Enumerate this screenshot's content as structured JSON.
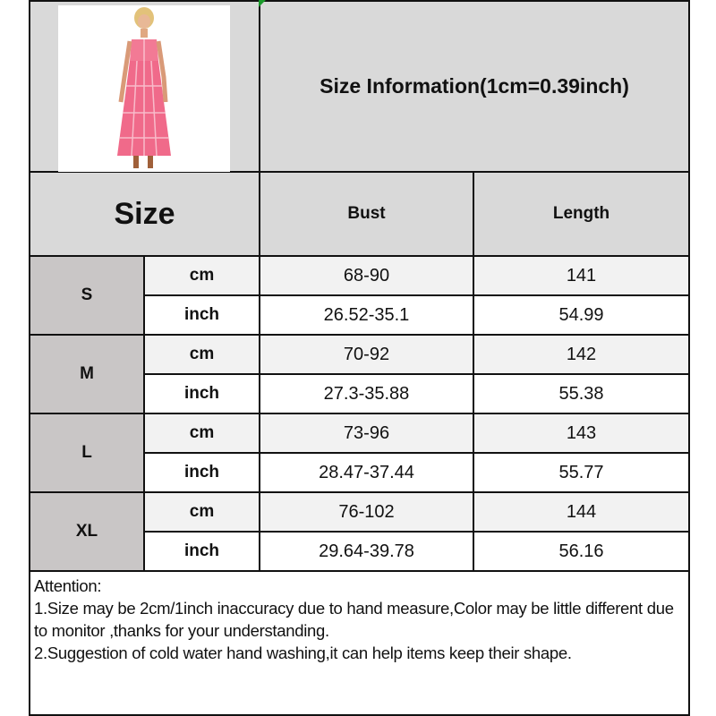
{
  "title": "Size Information(1cm=0.39inch)",
  "product_image": {
    "alt": "Pink plaid strapless maxi dress",
    "dress_color": "#f06a8a"
  },
  "header": {
    "size_label": "Size",
    "columns": [
      "Bust",
      "Length"
    ]
  },
  "sizes": [
    {
      "size": "S",
      "rows": [
        {
          "unit": "cm",
          "bust": "68-90",
          "length": "141"
        },
        {
          "unit": "inch",
          "bust": "26.52-35.1",
          "length": "54.99"
        }
      ]
    },
    {
      "size": "M",
      "rows": [
        {
          "unit": "cm",
          "bust": "70-92",
          "length": "142"
        },
        {
          "unit": "inch",
          "bust": "27.3-35.88",
          "length": "55.38"
        }
      ]
    },
    {
      "size": "L",
      "rows": [
        {
          "unit": "cm",
          "bust": "73-96",
          "length": "143"
        },
        {
          "unit": "inch",
          "bust": "28.47-37.44",
          "length": "55.77"
        }
      ]
    },
    {
      "size": "XL",
      "rows": [
        {
          "unit": "cm",
          "bust": "76-102",
          "length": "144"
        },
        {
          "unit": "inch",
          "bust": "29.64-39.78",
          "length": "56.16"
        }
      ]
    }
  ],
  "attention": {
    "heading": "Attention:",
    "notes": [
      "1.Size may be 2cm/1inch inaccuracy due to hand measure,Color may be little different due to monitor ,thanks for your understanding.",
      "2.Suggestion of cold water hand washing,it can help items keep their shape."
    ]
  },
  "colors": {
    "header_bg": "#d9d9d9",
    "size_cell_bg": "#c9c6c6",
    "cm_row_bg": "#f2f2f2",
    "border": "#111111"
  }
}
